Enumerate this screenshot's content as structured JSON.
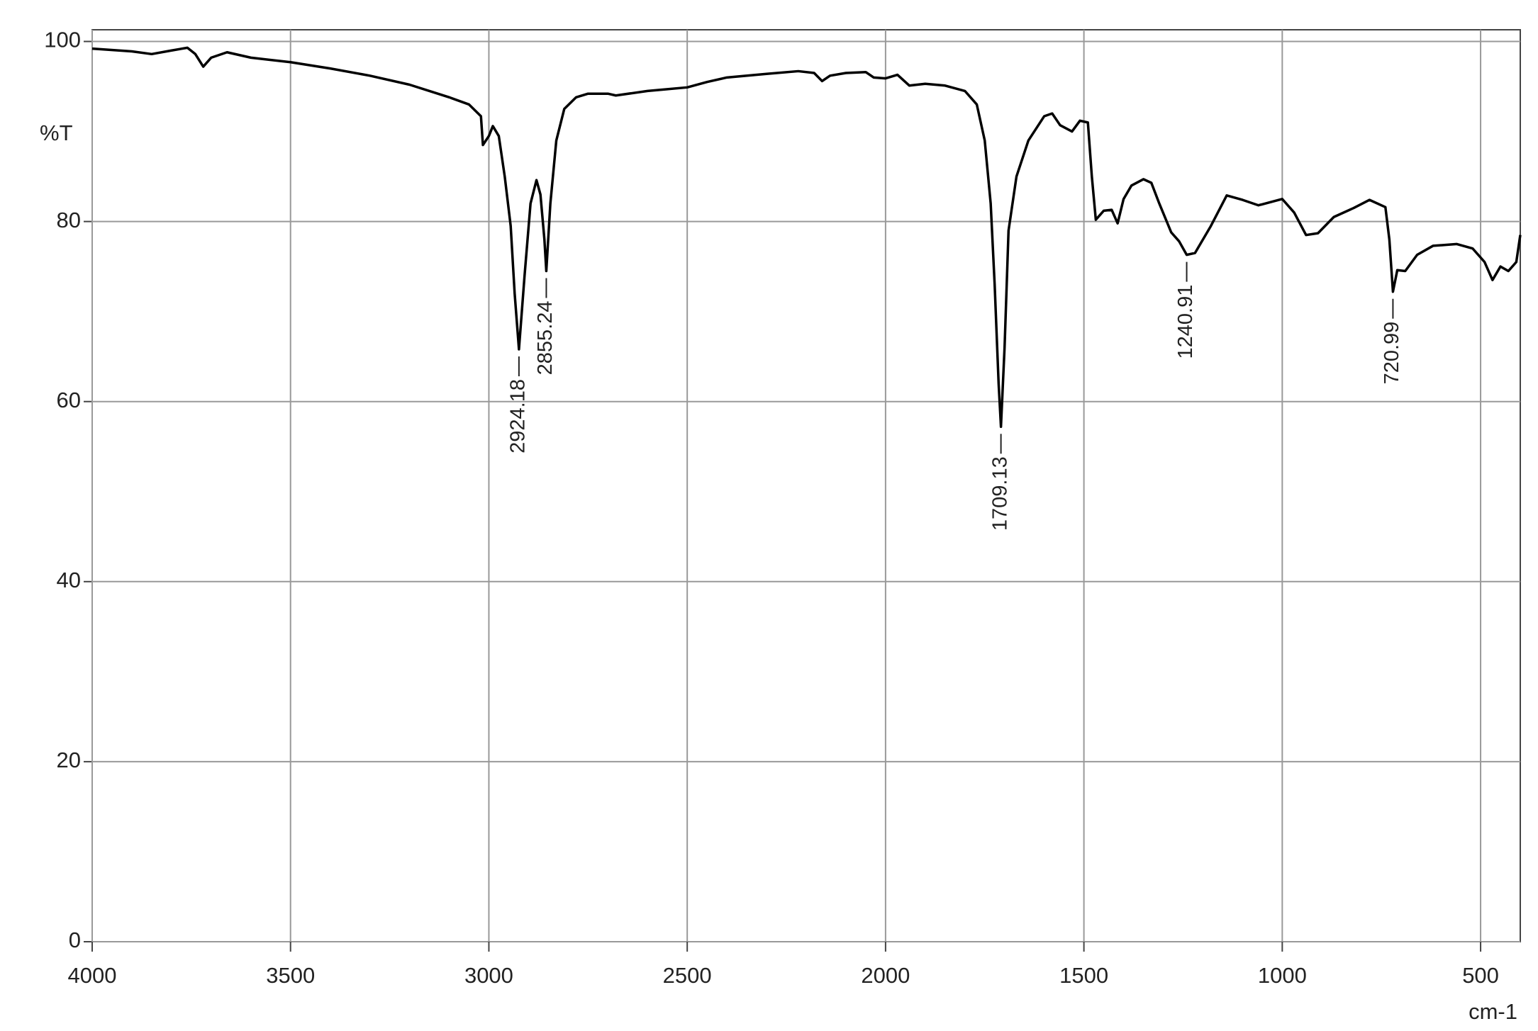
{
  "chart_data": {
    "type": "line",
    "ylabel": "%T",
    "xlabel": "cm-1",
    "xlim": [
      4000,
      400
    ],
    "ylim": [
      0,
      101.3
    ],
    "xticks": [
      4000,
      3500,
      3000,
      2500,
      2000,
      1500,
      1000,
      500
    ],
    "yticks": [
      0,
      20,
      40,
      60,
      80,
      100
    ],
    "grid": true,
    "color": "#000000",
    "x": [
      4000,
      3900,
      3850,
      3800,
      3760,
      3740,
      3720,
      3700,
      3660,
      3600,
      3500,
      3400,
      3300,
      3200,
      3100,
      3050,
      3020,
      3015,
      3000,
      2990,
      2975,
      2960,
      2945,
      2935,
      2924.18,
      2910,
      2895,
      2880,
      2870,
      2860,
      2855.24,
      2845,
      2830,
      2810,
      2780,
      2750,
      2700,
      2680,
      2600,
      2500,
      2450,
      2400,
      2300,
      2220,
      2180,
      2160,
      2140,
      2100,
      2050,
      2030,
      2000,
      1970,
      1940,
      1900,
      1850,
      1800,
      1770,
      1750,
      1735,
      1725,
      1715,
      1709.13,
      1700,
      1690,
      1670,
      1640,
      1600,
      1580,
      1560,
      1530,
      1510,
      1490,
      1480,
      1470,
      1450,
      1430,
      1415,
      1400,
      1380,
      1350,
      1330,
      1310,
      1280,
      1260,
      1240.91,
      1220,
      1180,
      1140,
      1100,
      1060,
      1000,
      970,
      940,
      910,
      870,
      820,
      780,
      740,
      730,
      720.99,
      710,
      690,
      660,
      620,
      560,
      520,
      490,
      470,
      450,
      430,
      410,
      400
    ],
    "values": [
      99.2,
      98.9,
      98.6,
      99.0,
      99.3,
      98.6,
      97.2,
      98.2,
      98.8,
      98.2,
      97.7,
      97.0,
      96.2,
      95.2,
      93.8,
      93.0,
      91.7,
      88.5,
      89.5,
      90.6,
      89.5,
      85.0,
      79.5,
      72.0,
      65.8,
      74.0,
      82.0,
      84.6,
      83.0,
      78.0,
      74.5,
      82.0,
      89.0,
      92.5,
      93.8,
      94.2,
      94.2,
      94.0,
      94.5,
      94.9,
      95.5,
      96.0,
      96.4,
      96.7,
      96.5,
      95.6,
      96.2,
      96.5,
      96.6,
      96.0,
      95.9,
      96.3,
      95.1,
      95.3,
      95.1,
      94.5,
      93.0,
      89.0,
      82.0,
      73.0,
      62.0,
      57.2,
      66.0,
      79.0,
      85.0,
      89.0,
      91.7,
      92.0,
      90.7,
      90.0,
      91.2,
      91.0,
      85.0,
      80.2,
      81.2,
      81.3,
      79.8,
      82.5,
      84.0,
      84.7,
      84.3,
      82.0,
      78.8,
      77.8,
      76.3,
      76.5,
      79.5,
      82.9,
      82.4,
      81.8,
      82.5,
      81.0,
      78.5,
      78.7,
      80.5,
      81.5,
      82.4,
      81.6,
      78.0,
      72.2,
      74.6,
      74.5,
      76.3,
      77.3,
      77.5,
      77.0,
      75.5,
      73.5,
      75.0,
      74.5,
      75.5,
      78.5
    ],
    "annotations": [
      {
        "x": 2924.18,
        "y": 65.8,
        "label": "2924.18"
      },
      {
        "x": 2855.24,
        "y": 74.5,
        "label": "2855.24"
      },
      {
        "x": 1709.13,
        "y": 57.2,
        "label": "1709.13"
      },
      {
        "x": 1240.91,
        "y": 76.3,
        "label": "1240.91"
      },
      {
        "x": 720.99,
        "y": 72.2,
        "label": "720.99"
      }
    ]
  }
}
